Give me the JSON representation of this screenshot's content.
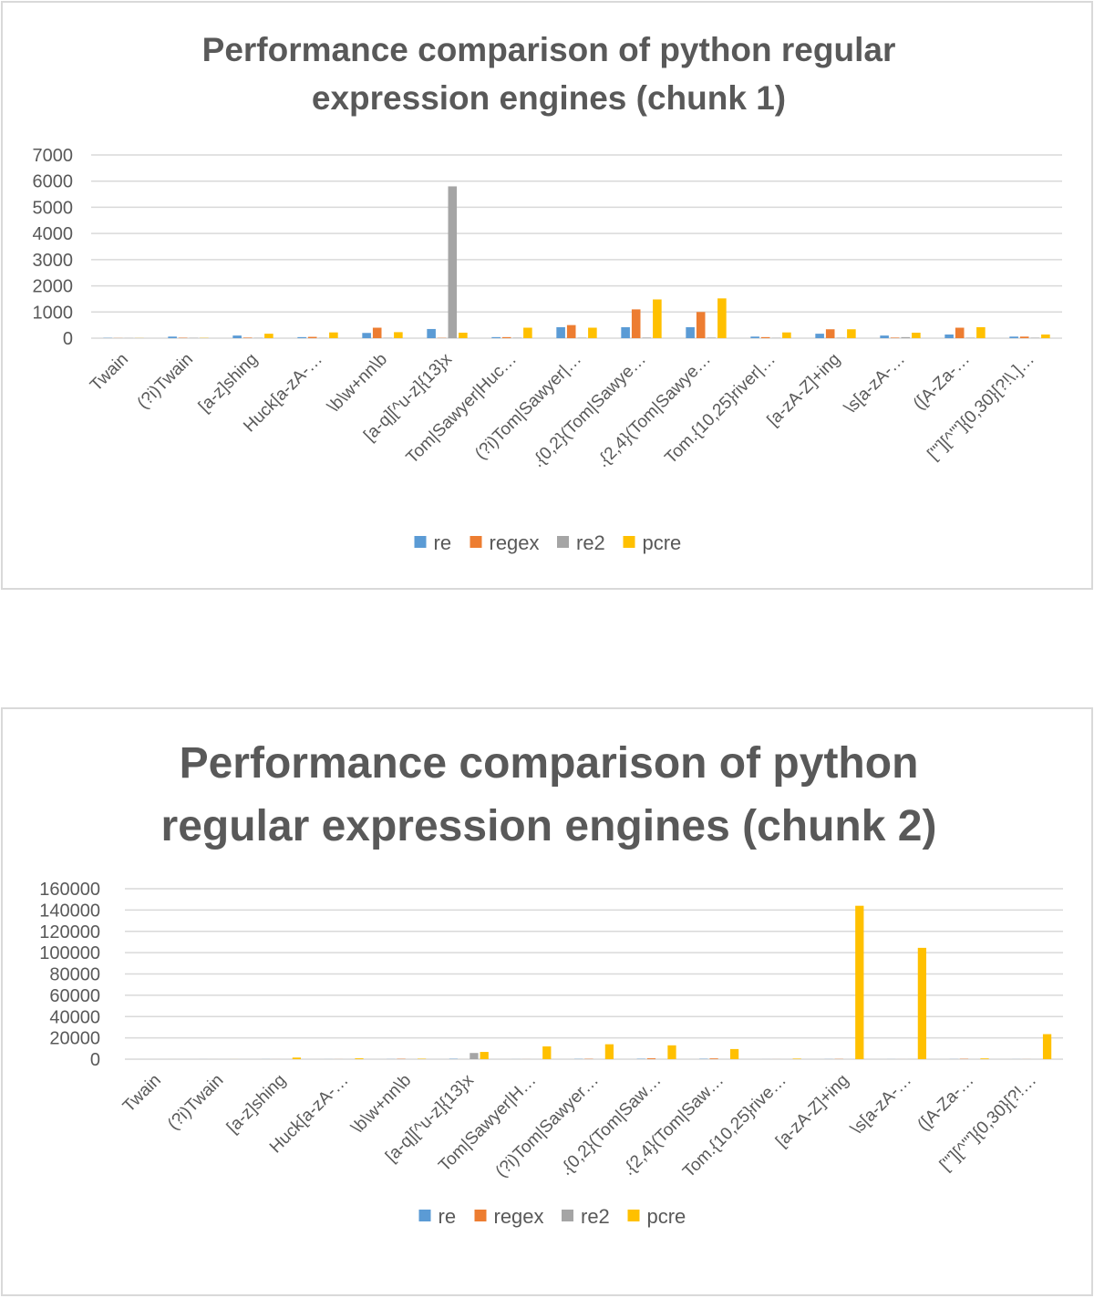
{
  "chart_data": [
    {
      "type": "bar",
      "title": "Performance comparison of python regular expression engines (chunk 1)",
      "categories": [
        "Twain",
        "(?i)Twain",
        "[a-z]shing",
        "Huck[a-zA-…",
        "\\b\\w+nn\\b",
        "[a-q][^u-z]{13}x",
        "Tom|Sawyer|Huc…",
        "(?i)Tom|Sawyer|…",
        ".{0,2}(Tom|Sawye…",
        ".{2,4}(Tom|Sawye…",
        "Tom.{10,25}river|…",
        "[a-zA-Z]+ing",
        "\\s[a-zA-…",
        "([A-Za-…",
        "[\"'][^\"']{0,30}[?!\\.]…"
      ],
      "series": [
        {
          "name": "re",
          "color": "#5b9bd5",
          "values": [
            10,
            60,
            100,
            40,
            200,
            350,
            40,
            420,
            420,
            420,
            60,
            170,
            100,
            140,
            60
          ]
        },
        {
          "name": "regex",
          "color": "#ed7d31",
          "values": [
            5,
            15,
            20,
            50,
            400,
            10,
            40,
            500,
            1100,
            1000,
            40,
            340,
            20,
            400,
            60
          ]
        },
        {
          "name": "re2",
          "color": "#a5a5a5",
          "values": [
            5,
            10,
            10,
            10,
            10,
            5800,
            15,
            15,
            20,
            20,
            10,
            15,
            40,
            15,
            15
          ]
        },
        {
          "name": "pcre",
          "color": "#ffc000",
          "values": [
            5,
            10,
            170,
            220,
            230,
            210,
            400,
            400,
            1480,
            1520,
            220,
            340,
            210,
            420,
            140
          ]
        }
      ],
      "yticks": [
        "0",
        "1000",
        "2000",
        "3000",
        "4000",
        "5000",
        "6000",
        "7000"
      ],
      "ylim": [
        0,
        7000
      ],
      "grid": true,
      "legend": "bottom"
    },
    {
      "type": "bar",
      "title": "Performance comparison of python regular expression engines (chunk 2)",
      "categories": [
        "Twain",
        "(?i)Twain",
        "[a-z]shing",
        "Huck[a-zA-…",
        "\\b\\w+nn\\b",
        "[a-q][^u-z]{13}x",
        "Tom|Sawyer|H…",
        "(?i)Tom|Sawyer…",
        ".{0,2}(Tom|Saw…",
        ".{2,4}(Tom|Saw…",
        "Tom.{10,25}rive…",
        "[a-zA-Z]+ing",
        "\\s[a-zA-…",
        "([A-Za-…",
        "[\"'][^\"']{0,30}[?!…"
      ],
      "series": [
        {
          "name": "re",
          "color": "#5b9bd5",
          "values": [
            10,
            30,
            60,
            40,
            100,
            300,
            40,
            200,
            300,
            300,
            30,
            100,
            50,
            100,
            50
          ]
        },
        {
          "name": "regex",
          "color": "#ed7d31",
          "values": [
            5,
            10,
            20,
            50,
            300,
            10,
            30,
            300,
            800,
            700,
            30,
            200,
            20,
            300,
            50
          ]
        },
        {
          "name": "re2",
          "color": "#a5a5a5",
          "values": [
            5,
            10,
            10,
            10,
            10,
            5800,
            15,
            15,
            20,
            20,
            10,
            15,
            40,
            15,
            15
          ]
        },
        {
          "name": "pcre",
          "color": "#ffc000",
          "values": [
            10,
            30,
            1500,
            800,
            400,
            6800,
            12000,
            14000,
            13000,
            9500,
            500,
            144000,
            104500,
            700,
            23500
          ]
        }
      ],
      "yticks": [
        "0",
        "20000",
        "40000",
        "60000",
        "80000",
        "100000",
        "120000",
        "140000",
        "160000"
      ],
      "ylim": [
        0,
        160000
      ],
      "grid": true,
      "legend": "bottom"
    }
  ],
  "charts": [
    {
      "title_lines": [
        "Performance comparison of python regular",
        "expression engines (chunk 1)"
      ]
    },
    {
      "title_lines": [
        "Performance comparison of python",
        "regular expression engines (chunk 2)"
      ]
    }
  ]
}
